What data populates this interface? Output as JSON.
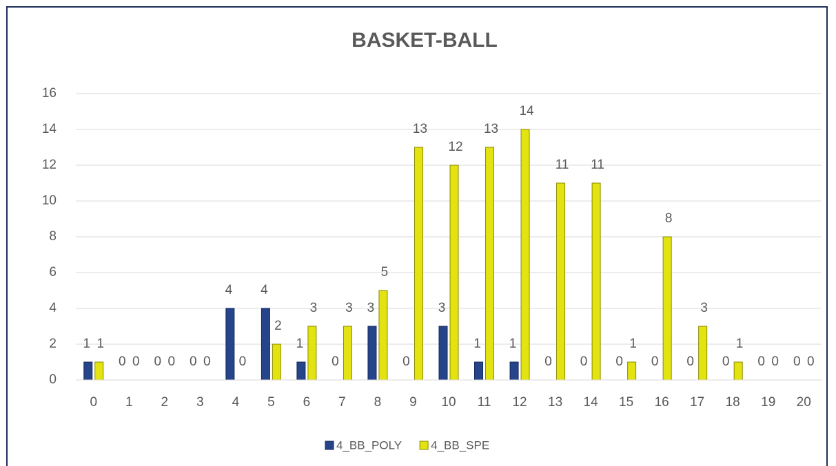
{
  "chart_data": {
    "type": "bar",
    "title": "BASKET-BALL",
    "categories": [
      "0",
      "1",
      "2",
      "3",
      "4",
      "5",
      "6",
      "7",
      "8",
      "9",
      "10",
      "11",
      "12",
      "13",
      "14",
      "15",
      "16",
      "17",
      "18",
      "19",
      "20"
    ],
    "series": [
      {
        "name": "4_BB_POLY",
        "color": "#25448a",
        "values": [
          1,
          0,
          0,
          0,
          4,
          4,
          1,
          0,
          3,
          0,
          3,
          1,
          1,
          0,
          0,
          0,
          0,
          0,
          0,
          0,
          0
        ]
      },
      {
        "name": "4_BB_SPE",
        "color": "#e3e312",
        "values": [
          1,
          0,
          0,
          0,
          0,
          2,
          3,
          3,
          5,
          13,
          12,
          13,
          14,
          11,
          11,
          1,
          8,
          3,
          1,
          0,
          0
        ]
      }
    ],
    "ylim": [
      0,
      16
    ],
    "yticks": [
      0,
      2,
      4,
      6,
      8,
      10,
      12,
      14,
      16
    ],
    "grid": true,
    "legend": "bottom"
  }
}
